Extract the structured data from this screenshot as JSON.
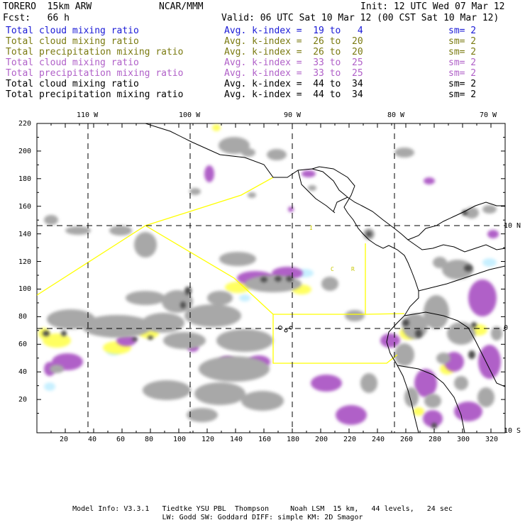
{
  "header": {
    "model": "TORERO  15km ARW",
    "center": "NCAR/MMM",
    "init": "Init: 12 UTC Wed 07 Mar 12",
    "fcst": "Fcst:   66 h",
    "valid": "Valid: 06 UTC Sat 10 Mar 12 (00 CST Sat 10 Mar 12)"
  },
  "fields": [
    {
      "name": "Total cloud mixing ratio",
      "idx": "Avg. k-index =  19 to   4",
      "sm": "sm= 2",
      "color": "#1a1ad6"
    },
    {
      "name": "Total cloud mixing ratio",
      "idx": "Avg. k-index =  26 to  20",
      "sm": "sm= 2",
      "color": "#7a7a10"
    },
    {
      "name": "Total precipitation mixing ratio",
      "idx": "Avg. k-index =  26 to  20",
      "sm": "sm= 2",
      "color": "#7a7a10"
    },
    {
      "name": "Total cloud mixing ratio",
      "idx": "Avg. k-index =  33 to  25",
      "sm": "sm= 2",
      "color": "#b060c8"
    },
    {
      "name": "Total precipitation mixing ratio",
      "idx": "Avg. k-index =  33 to  25",
      "sm": "sm= 2",
      "color": "#b060c8"
    },
    {
      "name": "Total cloud mixing ratio",
      "idx": "Avg. k-index =  44 to  34",
      "sm": "sm= 2",
      "color": "#000000"
    },
    {
      "name": "Total precipitation mixing ratio",
      "idx": "Avg. k-index =  44 to  34",
      "sm": "sm= 2",
      "color": "#000000"
    }
  ],
  "axes": {
    "top_lon": [
      "110 W",
      "100 W",
      "90 W",
      "80 W",
      "70 W"
    ],
    "right_lat": [
      "10 N",
      "0",
      "10 S"
    ],
    "left_y": [
      "220",
      "200",
      "180",
      "160",
      "140",
      "120",
      "100",
      "80",
      "60",
      "40",
      "20"
    ],
    "bottom_x": [
      "20",
      "40",
      "60",
      "80",
      "100",
      "120",
      "140",
      "160",
      "180",
      "200",
      "220",
      "240",
      "260",
      "280",
      "300",
      "320"
    ]
  },
  "map_labels": [
    "C",
    "R",
    "I"
  ],
  "colors": {
    "cloud_gray": "#a8a8a8",
    "dark_gray": "#505050",
    "purple": "#b060c8",
    "yellow": "#ffff60",
    "cyan": "#c8f0ff",
    "boundary_yellow": "#ffff00"
  },
  "footer": {
    "line1": "Model Info: V3.3.1   Tiedtke YSU PBL  Thompson     Noah LSM  15 km,   44 levels,   24 sec",
    "line2": "LW: Godd SW: Goddard DIFF: simple KM: 2D Smagor"
  }
}
